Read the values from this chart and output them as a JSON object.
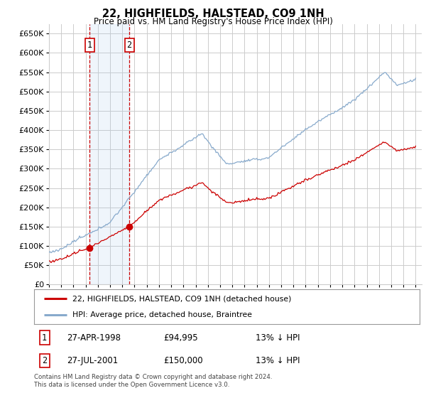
{
  "title": "22, HIGHFIELDS, HALSTEAD, CO9 1NH",
  "subtitle": "Price paid vs. HM Land Registry's House Price Index (HPI)",
  "ylabel_ticks": [
    "£0",
    "£50K",
    "£100K",
    "£150K",
    "£200K",
    "£250K",
    "£300K",
    "£350K",
    "£400K",
    "£450K",
    "£500K",
    "£550K",
    "£600K",
    "£650K"
  ],
  "ytick_values": [
    0,
    50000,
    100000,
    150000,
    200000,
    250000,
    300000,
    350000,
    400000,
    450000,
    500000,
    550000,
    600000,
    650000
  ],
  "ylim": [
    0,
    675000
  ],
  "xlim_start": 1995.0,
  "xlim_end": 2025.5,
  "transaction1": {
    "date_num": 1998.32,
    "price": 94995,
    "label": "1"
  },
  "transaction2": {
    "date_num": 2001.57,
    "price": 150000,
    "label": "2"
  },
  "legend_line1": "22, HIGHFIELDS, HALSTEAD, CO9 1NH (detached house)",
  "legend_line2": "HPI: Average price, detached house, Braintree",
  "table_row1": [
    "1",
    "27-APR-1998",
    "£94,995",
    "13% ↓ HPI"
  ],
  "table_row2": [
    "2",
    "27-JUL-2001",
    "£150,000",
    "13% ↓ HPI"
  ],
  "footnote": "Contains HM Land Registry data © Crown copyright and database right 2024.\nThis data is licensed under the Open Government Licence v3.0.",
  "line_color_property": "#cc0000",
  "line_color_hpi": "#88aacc",
  "background_color": "#ffffff",
  "grid_color": "#cccccc",
  "highlight_fill": "#ddeeff"
}
